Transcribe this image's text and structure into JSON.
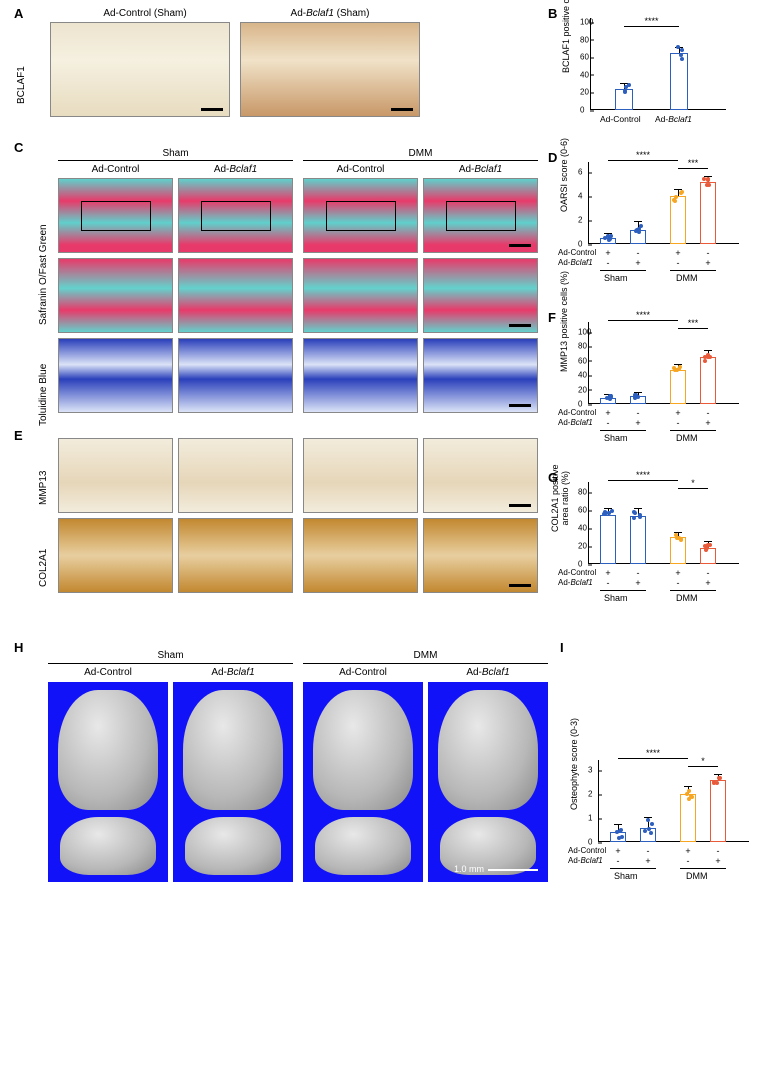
{
  "panelA": {
    "letter": "A",
    "rowLabel": "BCLAF1",
    "headers": [
      "Ad-Control (Sham)",
      "Ad-Bclaf1 (Sham)"
    ]
  },
  "panelB": {
    "letter": "B",
    "ylabel": "BCLAF1 positive cells (%)",
    "ylim": [
      0,
      100
    ],
    "ytick_step": 20,
    "categories": [
      "Ad-Control",
      "Ad-Bclaf1"
    ],
    "values": [
      24,
      65
    ],
    "errors": [
      6,
      6
    ],
    "points": [
      [
        20,
        22,
        28,
        26
      ],
      [
        58,
        62,
        68,
        72
      ]
    ],
    "bar_colors": [
      "#2d5fbf",
      "#2d5fbf"
    ],
    "sig": "****"
  },
  "panelC": {
    "letter": "C",
    "top_groups": [
      "Sham",
      "DMM"
    ],
    "sub_headers": [
      "Ad-Control",
      "Ad-Bclaf1",
      "Ad-Control",
      "Ad-Bclaf1"
    ],
    "row_labels": [
      "Safranin O/Fast Green",
      "Toluidine Blue"
    ]
  },
  "panelD": {
    "letter": "D",
    "ylabel": "OARSI score (0-6)",
    "ylim": [
      0,
      6
    ],
    "ytick_step": 2,
    "values": [
      0.5,
      1.2,
      4.0,
      5.2
    ],
    "errors": [
      0.3,
      0.6,
      0.5,
      0.4
    ],
    "bar_colors": [
      "#2d5fbf",
      "#2d5fbf",
      "#f6a623",
      "#e85a3a"
    ],
    "sig_pairs": [
      {
        "from": 0,
        "to": 2,
        "label": "****"
      },
      {
        "from": 2,
        "to": 3,
        "label": "***"
      }
    ],
    "group_rows": [
      "Ad-Control",
      "Ad-Bclaf1"
    ],
    "group_vals": [
      [
        "+",
        "-",
        "+",
        "-"
      ],
      [
        "-",
        "+",
        "-",
        "+"
      ]
    ],
    "group_bottom": [
      "Sham",
      "DMM"
    ]
  },
  "panelE": {
    "letter": "E",
    "row_labels": [
      "MMP13",
      "COL2A1"
    ]
  },
  "panelF": {
    "letter": "F",
    "ylabel": "MMP13 positive cells (%)",
    "ylim": [
      0,
      100
    ],
    "ytick_step": 20,
    "values": [
      9,
      11,
      47,
      65
    ],
    "errors": [
      3,
      4,
      7,
      8
    ],
    "bar_colors": [
      "#2d5fbf",
      "#2d5fbf",
      "#f6a623",
      "#e85a3a"
    ],
    "sig_pairs": [
      {
        "from": 0,
        "to": 2,
        "label": "****"
      },
      {
        "from": 2,
        "to": 3,
        "label": "***"
      }
    ],
    "group_rows": [
      "Ad-Control",
      "Ad-Bclaf1"
    ],
    "group_vals": [
      [
        "+",
        "-",
        "+",
        "-"
      ],
      [
        "-",
        "+",
        "-",
        "+"
      ]
    ],
    "group_bottom": [
      "Sham",
      "DMM"
    ]
  },
  "panelG": {
    "letter": "G",
    "ylabel": "COL2A1 positive\narea ratio (%)",
    "ylim": [
      0,
      80
    ],
    "ytick_step": 20,
    "values": [
      55,
      53,
      30,
      18
    ],
    "errors": [
      6,
      8,
      5,
      6
    ],
    "bar_colors": [
      "#2d5fbf",
      "#2d5fbf",
      "#f6a623",
      "#e85a3a"
    ],
    "sig_pairs": [
      {
        "from": 0,
        "to": 2,
        "label": "****"
      },
      {
        "from": 2,
        "to": 3,
        "label": "*"
      }
    ],
    "group_rows": [
      "Ad-Control",
      "Ad-Bclaf1"
    ],
    "group_vals": [
      [
        "+",
        "-",
        "+",
        "-"
      ],
      [
        "-",
        "+",
        "-",
        "+"
      ]
    ],
    "group_bottom": [
      "Sham",
      "DMM"
    ]
  },
  "panelH": {
    "letter": "H",
    "top_groups": [
      "Sham",
      "DMM"
    ],
    "sub_headers": [
      "Ad-Control",
      "Ad-Bclaf1",
      "Ad-Control",
      "Ad-Bclaf1"
    ],
    "scale_label": "1.0 mm"
  },
  "panelI": {
    "letter": "I",
    "ylabel": "Osteophyte score (0-3)",
    "ylim": [
      0,
      3
    ],
    "ytick_step": 1,
    "values": [
      0.4,
      0.6,
      2.0,
      2.6
    ],
    "errors": [
      0.3,
      0.4,
      0.3,
      0.2
    ],
    "bar_colors": [
      "#2d5fbf",
      "#2d5fbf",
      "#f6a623",
      "#e85a3a"
    ],
    "sig_pairs": [
      {
        "from": 0,
        "to": 2,
        "label": "****"
      },
      {
        "from": 2,
        "to": 3,
        "label": "*"
      }
    ],
    "group_rows": [
      "Ad-Control",
      "Ad-Bclaf1"
    ],
    "group_vals": [
      [
        "+",
        "-",
        "+",
        "-"
      ],
      [
        "-",
        "+",
        "-",
        "+"
      ]
    ],
    "group_bottom": [
      "Sham",
      "DMM"
    ]
  },
  "layout": {
    "figure_width": 763,
    "figure_height": 1066,
    "background": "#ffffff",
    "font_family": "Arial"
  }
}
